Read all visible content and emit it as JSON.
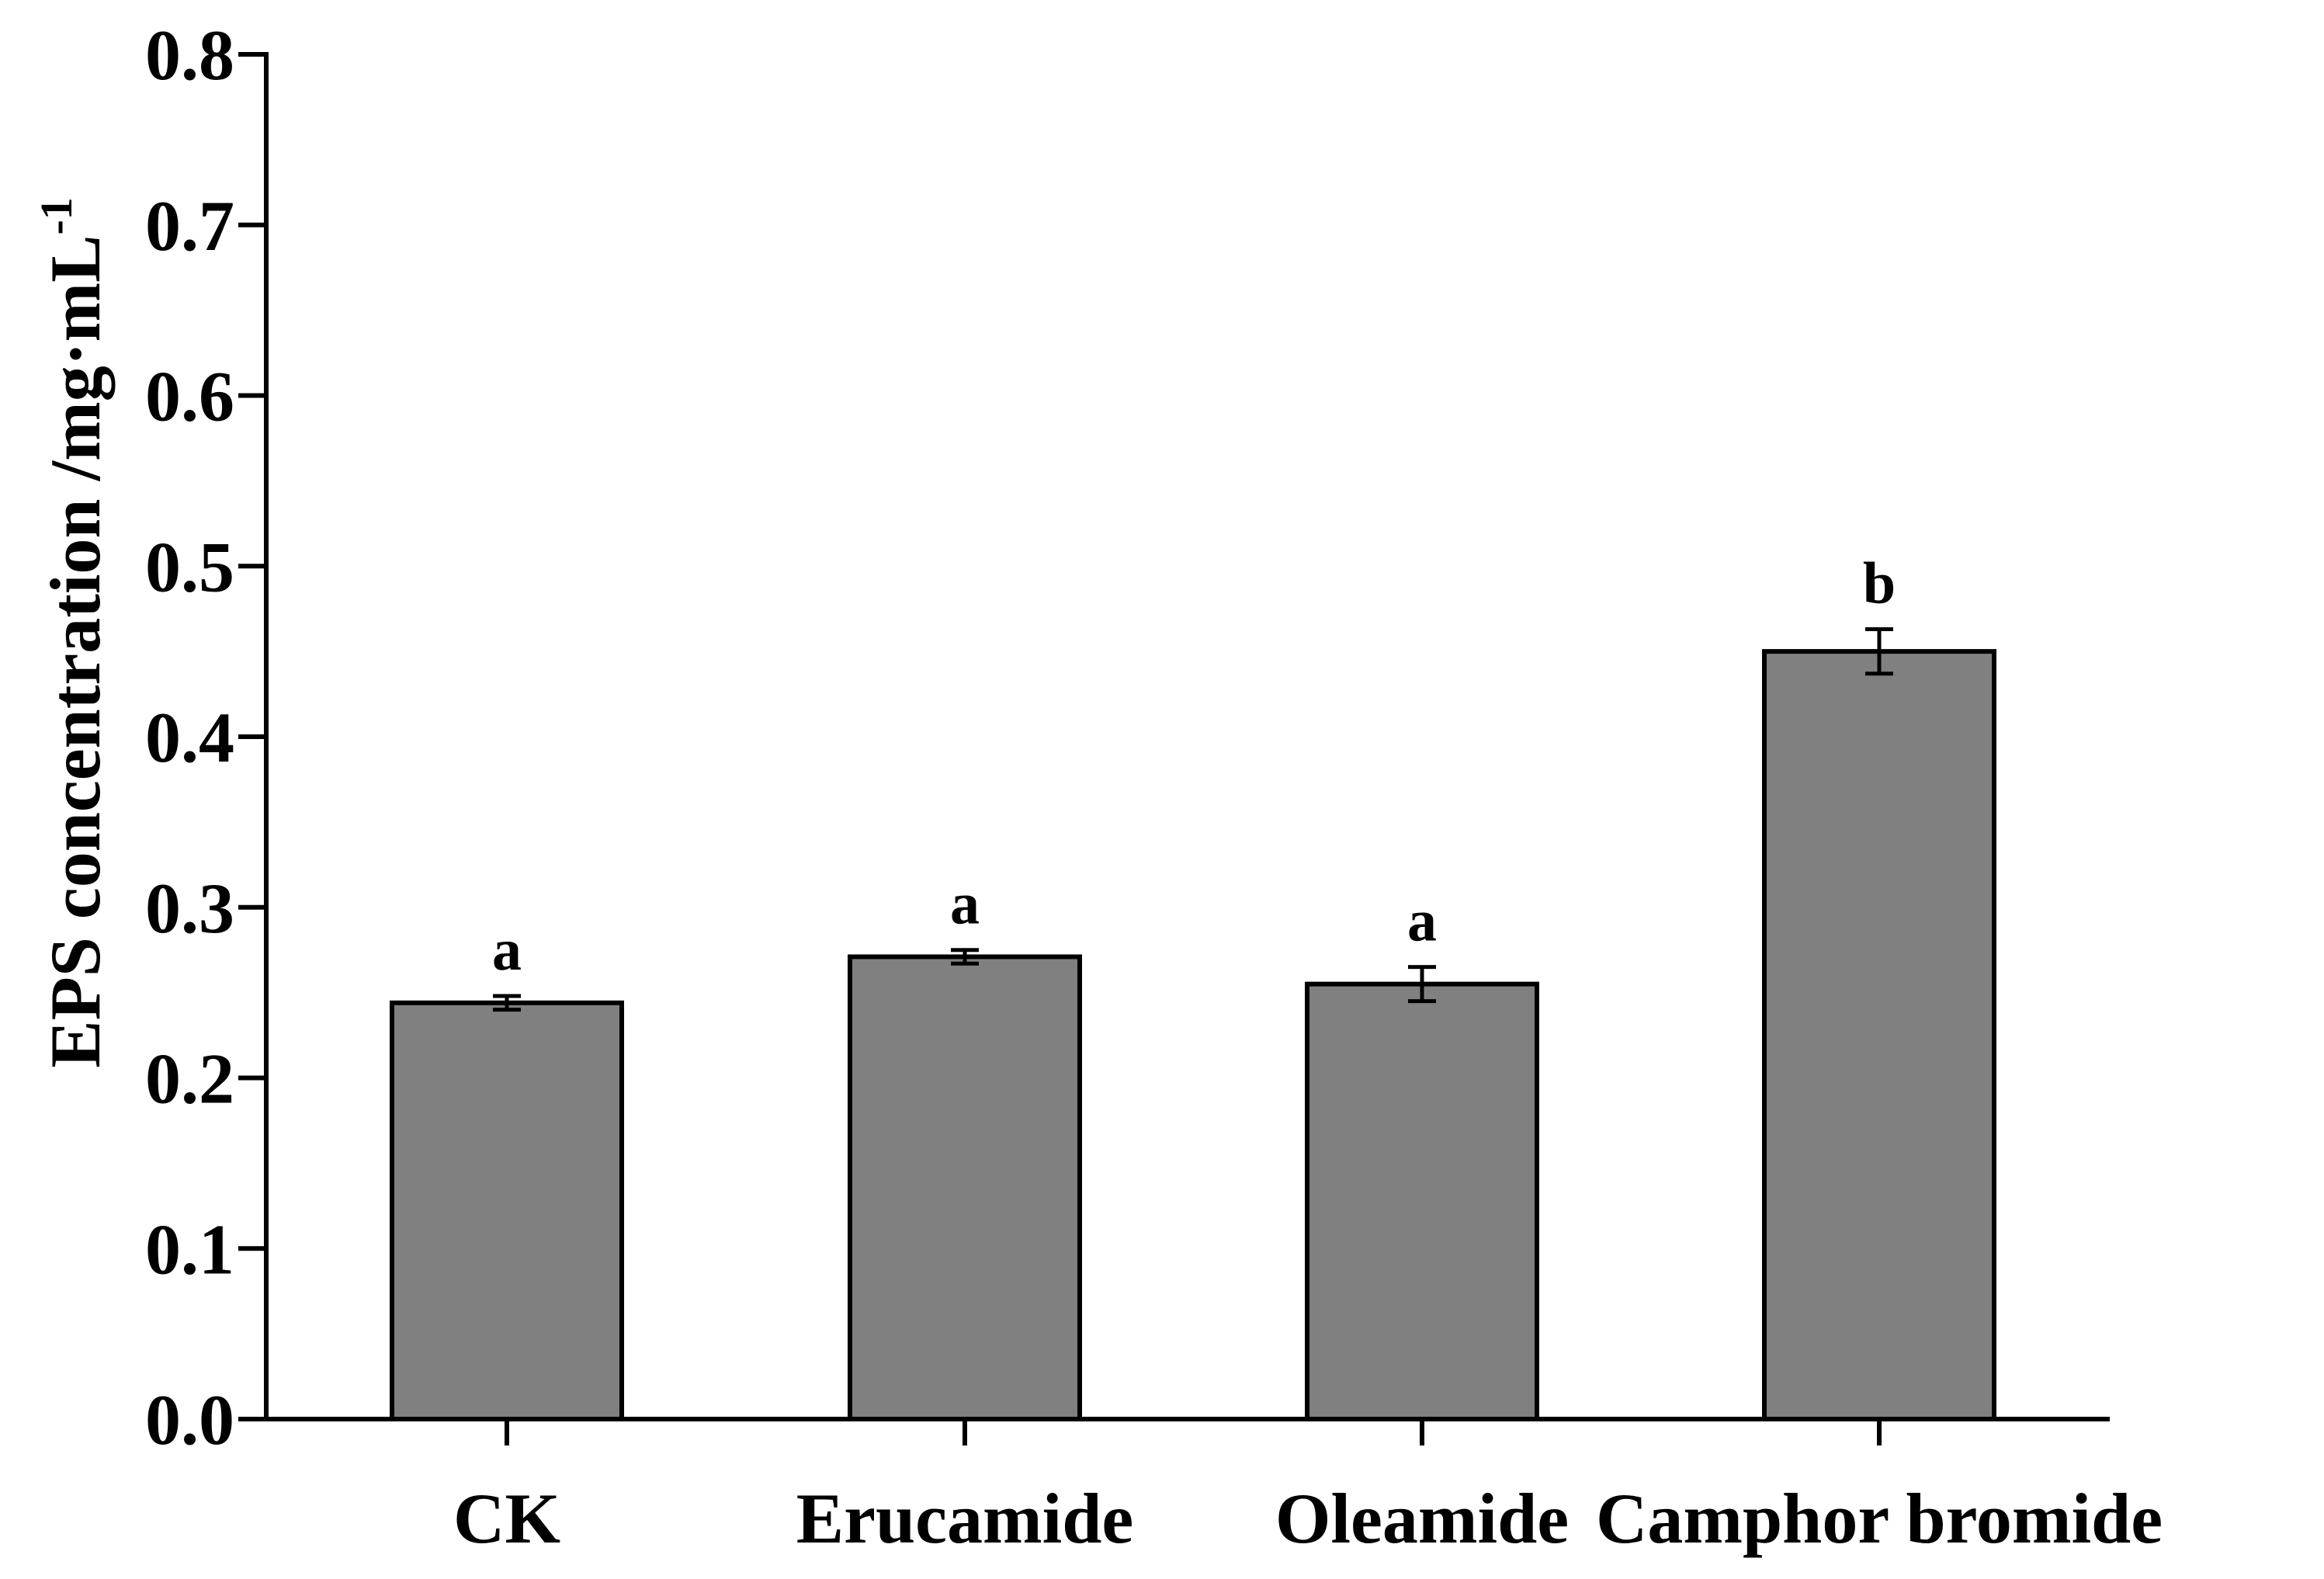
{
  "chart_data": {
    "type": "bar",
    "title": "",
    "xlabel": "",
    "ylabel": "EPS concentration /mg·mL",
    "ylabel_superscript": "-1",
    "ylim": [
      0,
      0.8
    ],
    "yticks": [
      "0.0",
      "0.1",
      "0.2",
      "0.3",
      "0.4",
      "0.5",
      "0.6",
      "0.7",
      "0.8"
    ],
    "ytick_values": [
      0.0,
      0.1,
      0.2,
      0.3,
      0.4,
      0.5,
      0.6,
      0.7,
      0.8
    ],
    "categories": [
      "CK",
      "Erucamide",
      "Oleamide",
      "Camphor bromide"
    ],
    "values": [
      0.244,
      0.271,
      0.255,
      0.45
    ],
    "errors": [
      0.004,
      0.004,
      0.01,
      0.013
    ],
    "significance": [
      "a",
      "a",
      "a",
      "b"
    ],
    "bar_color": "#808080",
    "legend": "none",
    "grid": false
  }
}
